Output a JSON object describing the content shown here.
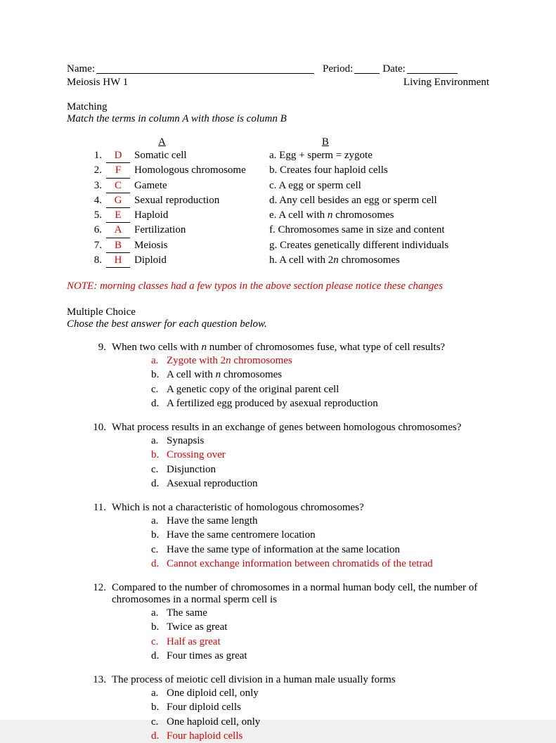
{
  "header": {
    "name_label": "Name:",
    "period_label": "Period:",
    "date_label": "Date:",
    "hw_title": "Meiosis HW 1",
    "course": "Living Environment"
  },
  "matching": {
    "title": "Matching",
    "instructions": "Match the terms in column A with those is column B",
    "col_a_head": "A",
    "col_b_head": "B",
    "rows": [
      {
        "num": "1.",
        "ans": "D",
        "termA": "Somatic cell",
        "termB": "a. Egg + sperm = zygote"
      },
      {
        "num": "2.",
        "ans": "F",
        "termA": "Homologous chromosome",
        "termB": "b. Creates four haploid cells"
      },
      {
        "num": "3.",
        "ans": "C",
        "termA": "Gamete",
        "termB": "c. A egg or sperm cell"
      },
      {
        "num": "4.",
        "ans": "G",
        "termA": "Sexual reproduction",
        "termB": "d. Any cell besides an egg or sperm cell"
      },
      {
        "num": "5.",
        "ans": "E",
        "termA": "Haploid",
        "termB_pre": "e. A cell with ",
        "termB_ital": "n",
        "termB_post": " chromosomes"
      },
      {
        "num": "6.",
        "ans": "A",
        "termA": "Fertilization",
        "termB": "f. Chromosomes same in size and content"
      },
      {
        "num": "7.",
        "ans": "B",
        "termA": "Meiosis",
        "termB": "g. Creates genetically different individuals"
      },
      {
        "num": "8.",
        "ans": "H",
        "termA": "Diploid",
        "termB_pre": "h. A cell with 2",
        "termB_ital": "n",
        "termB_post": " chromosomes"
      }
    ],
    "note": "NOTE: morning classes had a few typos in the above section please notice these changes"
  },
  "mc": {
    "title": "Multiple Choice",
    "instructions": "Chose the best answer for each question below.",
    "questions": [
      {
        "num": "9.",
        "stem_pre": "When two cells with ",
        "stem_ital": "n",
        "stem_post": " number of chromosomes fuse, what type of cell results?",
        "opts": [
          {
            "l": "a.",
            "pre": "Zygote with 2",
            "ital": "n",
            "post": " chromosomes",
            "answer": true
          },
          {
            "l": "b.",
            "pre": "A cell with ",
            "ital": "n",
            "post": " chromosomes",
            "answer": false
          },
          {
            "l": "c.",
            "t": "A genetic copy of the original parent cell",
            "answer": false
          },
          {
            "l": "d.",
            "t": "A fertilized egg produced by asexual reproduction",
            "answer": false
          }
        ]
      },
      {
        "num": "10.",
        "stem": "What process results in an exchange of genes between homologous chromosomes?",
        "opts": [
          {
            "l": "a.",
            "t": "Synapsis",
            "answer": false
          },
          {
            "l": "b.",
            "t": "Crossing over",
            "answer": true
          },
          {
            "l": "c.",
            "t": "Disjunction",
            "answer": false
          },
          {
            "l": "d.",
            "t": "Asexual reproduction",
            "answer": false
          }
        ]
      },
      {
        "num": "11.",
        "stem": "Which is not a characteristic of homologous chromosomes?",
        "opts": [
          {
            "l": "a.",
            "t": "Have the same length",
            "answer": false
          },
          {
            "l": "b.",
            "t": "Have the same centromere location",
            "answer": false
          },
          {
            "l": "c.",
            "t": "Have the same type of information at the same location",
            "answer": false
          },
          {
            "l": "d.",
            "t": "Cannot exchange information between chromatids of the tetrad",
            "answer": true
          }
        ]
      },
      {
        "num": "12.",
        "stem": "Compared to the number of chromosomes in a normal human body cell, the number of chromosomes in a normal sperm cell is",
        "opts": [
          {
            "l": "a.",
            "t": "The same",
            "answer": false
          },
          {
            "l": "b.",
            "t": "Twice as great",
            "answer": false
          },
          {
            "l": "c.",
            "t": "Half as great",
            "answer": true
          },
          {
            "l": "d.",
            "t": "Four times as great",
            "answer": false
          }
        ]
      },
      {
        "num": "13.",
        "stem": "The process of meiotic cell division in a human male usually forms",
        "opts": [
          {
            "l": "a.",
            "t": "One diploid cell, only",
            "answer": false
          },
          {
            "l": "b.",
            "t": "Four diploid cells",
            "answer": false
          },
          {
            "l": "c.",
            "t": "One haploid cell, only",
            "answer": false
          },
          {
            "l": "d.",
            "t": "Four haploid cells",
            "answer": true
          }
        ]
      }
    ]
  }
}
